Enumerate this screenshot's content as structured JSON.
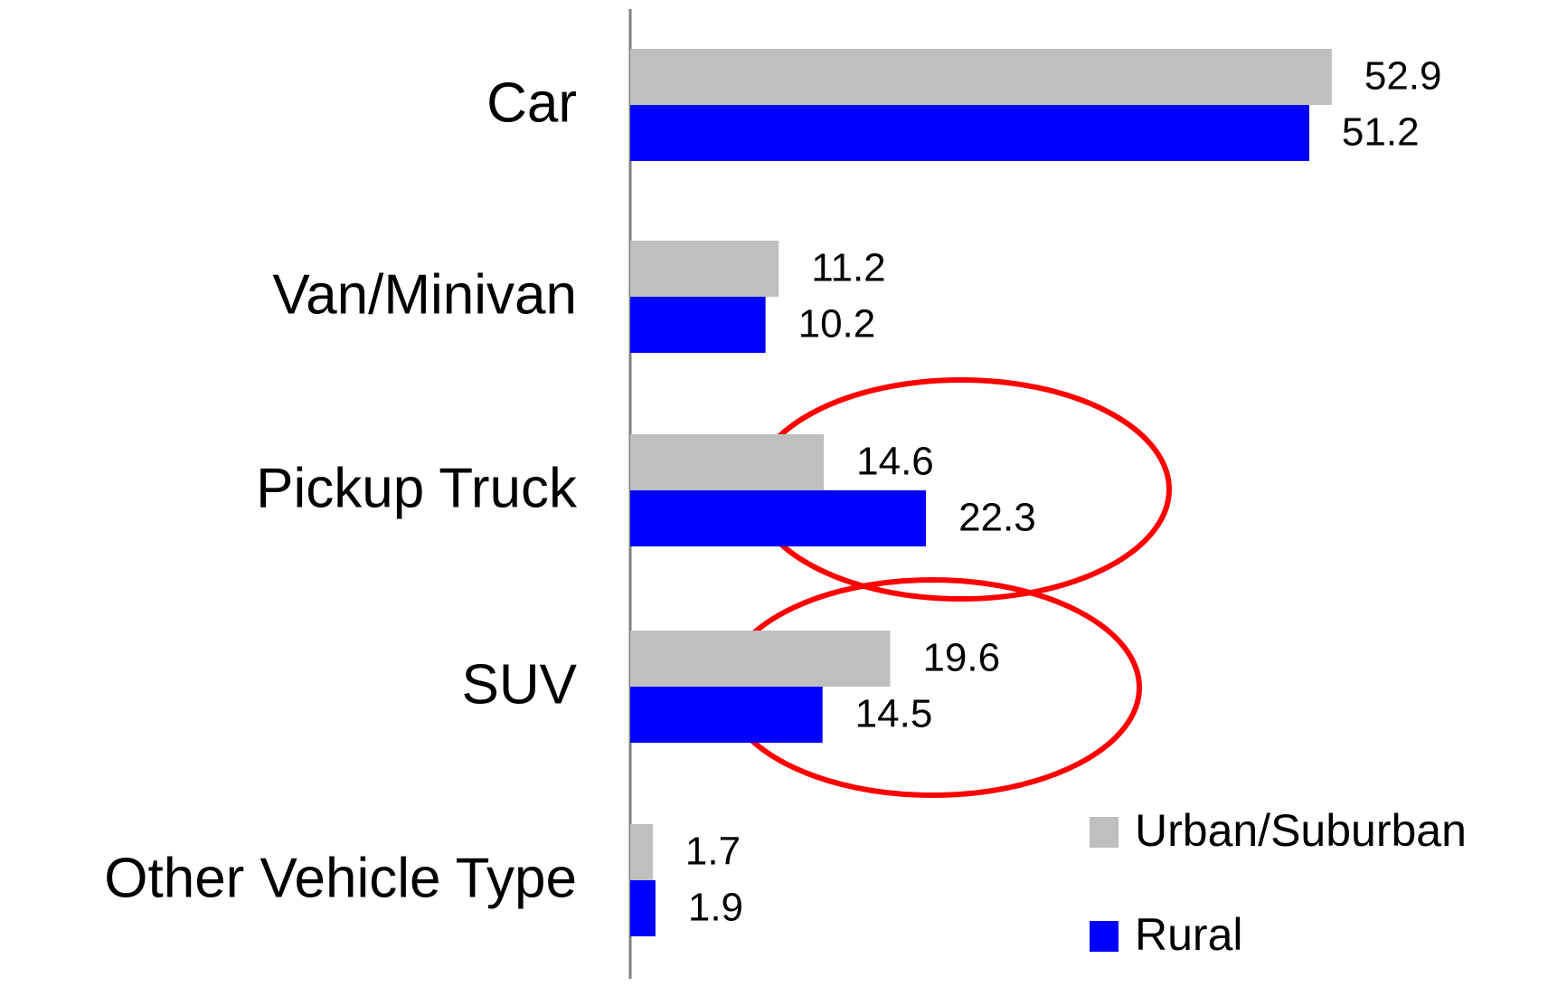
{
  "chart_data": {
    "type": "bar",
    "orientation": "horizontal",
    "categories": [
      "Car",
      "Van/Minivan",
      "Pickup Truck",
      "SUV",
      "Other Vehicle Type"
    ],
    "series": [
      {
        "name": "Urban/Suburban",
        "color": "#bfbfbf",
        "values": [
          52.9,
          11.2,
          14.6,
          19.6,
          1.7
        ]
      },
      {
        "name": "Rural",
        "color": "#0000ff",
        "values": [
          51.2,
          10.2,
          22.3,
          14.5,
          1.9
        ]
      }
    ],
    "xlim": [
      0,
      60
    ],
    "legend": "lower right"
  }
}
